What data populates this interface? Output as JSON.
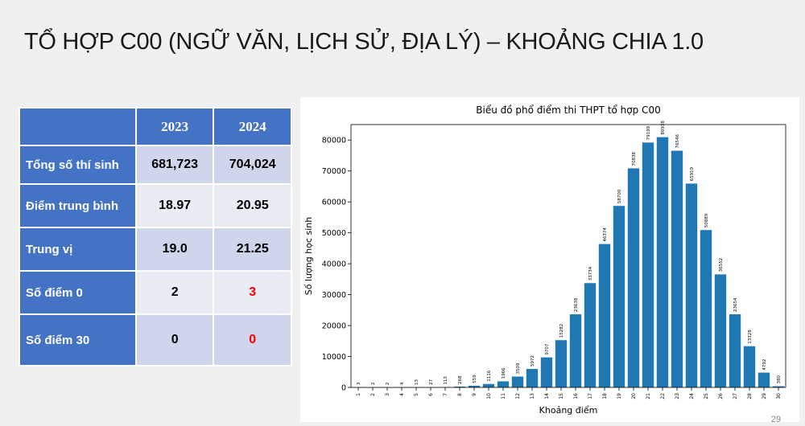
{
  "slide": {
    "title": "TỔ HỢP C00 (NGỮ VĂN, LỊCH SỬ, ĐỊA LÝ) – KHOẢNG CHIA 1.0",
    "page_number": "29"
  },
  "table": {
    "headers": [
      "",
      "2023",
      "2024"
    ],
    "rows": [
      {
        "label": "Tổng số thí sinh",
        "v2023": "681,723",
        "v2024": "704,024",
        "highlight_2024": false
      },
      {
        "label": "Điểm trung bình",
        "v2023": "18.97",
        "v2024": "20.95",
        "highlight_2024": false
      },
      {
        "label": "Trung vị",
        "v2023": "19.0",
        "v2024": "21.25",
        "highlight_2024": false
      },
      {
        "label": "Số điểm 0",
        "v2023": "2",
        "v2024": "3",
        "highlight_2024": true
      },
      {
        "label": "Số điểm 30",
        "v2023": "0",
        "v2024": "0",
        "highlight_2024": true
      }
    ]
  },
  "chart_data": {
    "type": "bar",
    "title": "Biểu đồ phổ điểm thi THPT tổ hợp C00",
    "xlabel": "Khoảng điểm",
    "ylabel": "Số lượng học sinh",
    "categories": [
      "1",
      "2",
      "3",
      "4",
      "5",
      "6",
      "7",
      "8",
      "9",
      "10",
      "11",
      "12",
      "13",
      "14",
      "15",
      "16",
      "17",
      "18",
      "19",
      "20",
      "21",
      "22",
      "23",
      "24",
      "25",
      "26",
      "27",
      "28",
      "29",
      "30"
    ],
    "values": [
      3,
      2,
      2,
      4,
      13,
      27,
      113,
      268,
      559,
      1116,
      1966,
      3509,
      5972,
      9707,
      15282,
      23638,
      33734,
      46374,
      58700,
      70838,
      79199,
      80938,
      76546,
      65919,
      50889,
      36552,
      23654,
      13328,
      4792,
      380
    ],
    "ylim": [
      0,
      85000
    ],
    "yticks": [
      0,
      10000,
      20000,
      30000,
      40000,
      50000,
      60000,
      70000,
      80000
    ],
    "bar_color": "#1f77b4",
    "grid": false
  }
}
